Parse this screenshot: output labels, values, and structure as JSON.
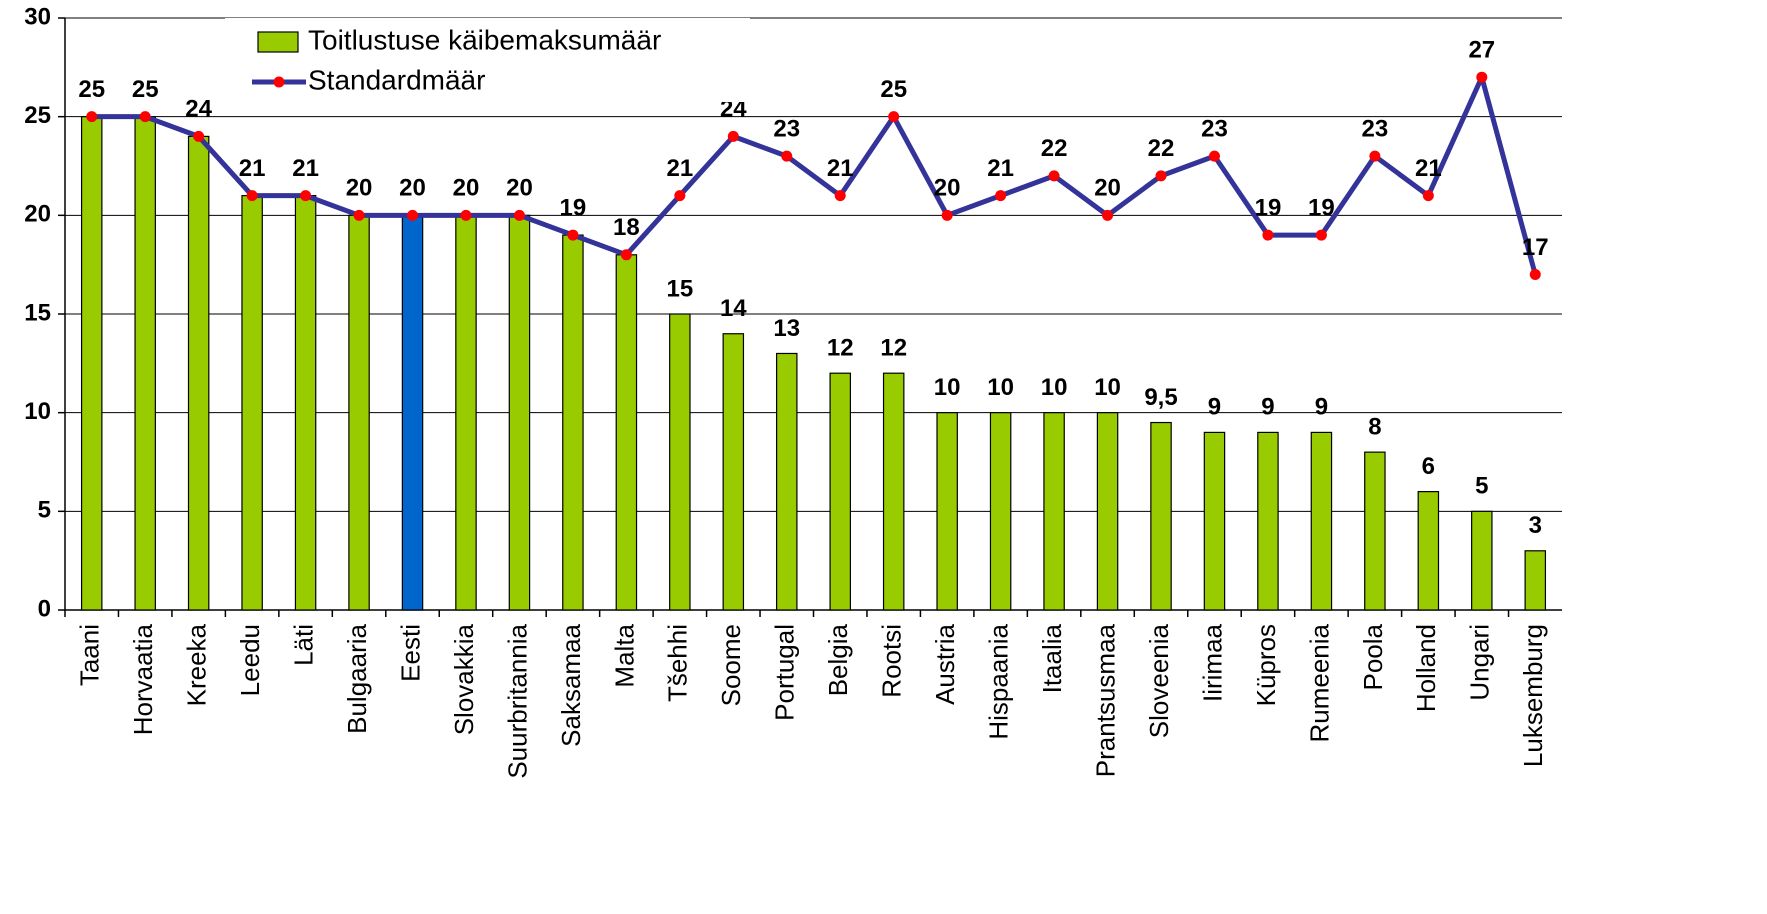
{
  "chart_data": {
    "type": "bar",
    "categories": [
      "Taani",
      "Horvaatia",
      "Kreeka",
      "Leedu",
      "Läti",
      "Bulgaaria",
      "Eesti",
      "Slovakkia",
      "Suurbritannia",
      "Saksamaa",
      "Malta",
      "Tšehhi",
      "Soome",
      "Portugal",
      "Belgia",
      "Rootsi",
      "Austria",
      "Hispaania",
      "Itaalia",
      "Prantsusmaa",
      "Sloveenia",
      "Iirimaa",
      "Küpros",
      "Rumeenia",
      "Poola",
      "Holland",
      "Ungari",
      "Luksemburg"
    ],
    "series": [
      {
        "name": "Toitlustuse käibemaksumäär",
        "type": "bar",
        "color": "#99cc00",
        "colors": [
          "#99cc00",
          "#99cc00",
          "#99cc00",
          "#99cc00",
          "#99cc00",
          "#99cc00",
          "#0066cc",
          "#99cc00",
          "#99cc00",
          "#99cc00",
          "#99cc00",
          "#99cc00",
          "#99cc00",
          "#99cc00",
          "#99cc00",
          "#99cc00",
          "#99cc00",
          "#99cc00",
          "#99cc00",
          "#99cc00",
          "#99cc00",
          "#99cc00",
          "#99cc00",
          "#99cc00",
          "#99cc00",
          "#99cc00",
          "#99cc00",
          "#99cc00"
        ],
        "values": [
          25,
          25,
          24,
          21,
          21,
          20,
          20,
          20,
          20,
          19,
          18,
          15,
          14,
          13,
          12,
          12,
          10,
          10,
          10,
          10,
          9.5,
          9,
          9,
          9,
          8,
          6,
          5,
          3
        ],
        "value_labels": [
          null,
          null,
          null,
          null,
          null,
          null,
          null,
          null,
          null,
          null,
          null,
          "15",
          "14",
          "13",
          "12",
          "12",
          "10",
          "10",
          "10",
          "10",
          "9,5",
          "9",
          "9",
          "9",
          "8",
          "6",
          "5",
          "3"
        ]
      },
      {
        "name": "Standardmäär",
        "type": "line",
        "color": "#333399",
        "marker_color": "#ff0000",
        "values": [
          25,
          25,
          24,
          21,
          21,
          20,
          20,
          20,
          20,
          19,
          18,
          21,
          24,
          23,
          21,
          25,
          20,
          21,
          22,
          20,
          22,
          23,
          19,
          19,
          23,
          21,
          27,
          17
        ]
      }
    ],
    "ylim": [
      0,
      30
    ],
    "yticks": [
      0,
      5,
      10,
      15,
      20,
      25,
      30
    ],
    "grid": true,
    "legend": "top-left"
  }
}
